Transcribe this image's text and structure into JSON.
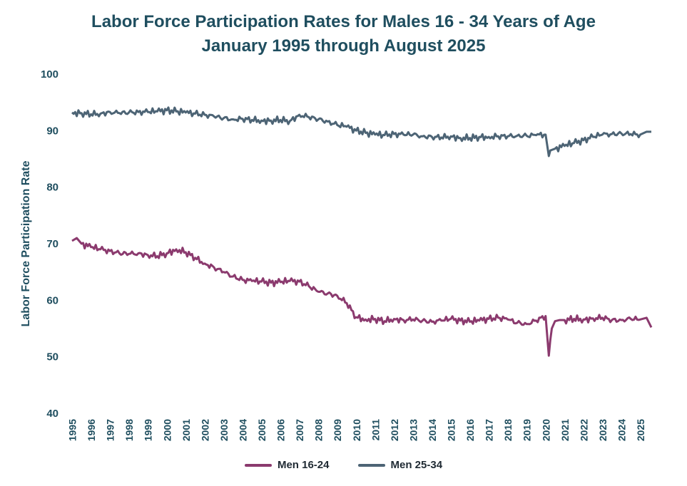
{
  "chart_data": {
    "type": "line",
    "title": "Labor Force Participation Rates for Males 16 - 34 Years of Age",
    "subtitle": "January 1995 through August 2025",
    "xlabel": "",
    "ylabel": "Labor Force Participation Rate",
    "ylim": [
      40,
      100
    ],
    "xlim": [
      1995.0,
      2025.583
    ],
    "yticks": [
      "100",
      "90",
      "80",
      "70",
      "60",
      "50",
      "40"
    ],
    "xticks": [
      "1995",
      "1996",
      "1997",
      "1998",
      "1999",
      "2000",
      "2001",
      "2002",
      "2003",
      "2004",
      "2005",
      "2006",
      "2007",
      "2008",
      "2009",
      "2010",
      "2011",
      "2012",
      "2013",
      "2014",
      "2015",
      "2016",
      "2017",
      "2018",
      "2019",
      "2020",
      "2021",
      "2022",
      "2023",
      "2024",
      "2025"
    ],
    "grid": false,
    "legend_position": "bottom",
    "series": [
      {
        "name": "Men 16-24",
        "color": "#8b3a6e",
        "x": [
          1995.0,
          1995.25,
          1995.5,
          1996.0,
          1996.5,
          1997.0,
          1997.5,
          1998.0,
          1998.5,
          1999.0,
          1999.5,
          2000.0,
          2000.5,
          2001.0,
          2001.5,
          2002.0,
          2002.5,
          2003.0,
          2003.5,
          2004.0,
          2004.5,
          2005.0,
          2005.5,
          2006.0,
          2006.5,
          2007.0,
          2007.5,
          2008.0,
          2008.5,
          2009.0,
          2009.5,
          2010.0,
          2010.5,
          2011.0,
          2011.5,
          2012.0,
          2012.5,
          2013.0,
          2013.5,
          2014.0,
          2014.5,
          2015.0,
          2015.5,
          2016.0,
          2016.5,
          2017.0,
          2017.5,
          2018.0,
          2018.5,
          2019.0,
          2019.5,
          2020.0,
          2020.17,
          2020.25,
          2020.33,
          2020.5,
          2020.75,
          2021.0,
          2021.5,
          2022.0,
          2022.5,
          2023.0,
          2023.5,
          2024.0,
          2024.5,
          2025.0,
          2025.33,
          2025.583
        ],
        "values": [
          70.5,
          71.0,
          70.0,
          69.4,
          69.0,
          68.7,
          68.3,
          68.2,
          68.3,
          68.0,
          67.8,
          68.3,
          69.0,
          68.5,
          67.5,
          66.5,
          65.8,
          65.0,
          64.2,
          63.6,
          63.4,
          63.3,
          63.1,
          63.2,
          63.4,
          63.3,
          62.5,
          61.5,
          61.2,
          60.8,
          59.5,
          57.0,
          56.6,
          56.7,
          56.3,
          56.7,
          56.5,
          56.6,
          56.4,
          56.2,
          56.4,
          56.7,
          56.4,
          56.2,
          56.4,
          56.7,
          56.9,
          56.6,
          56.0,
          55.8,
          56.4,
          57.2,
          50.2,
          53.0,
          55.0,
          56.3,
          56.5,
          56.5,
          56.7,
          56.6,
          56.8,
          56.9,
          56.5,
          56.5,
          56.7,
          56.6,
          56.9,
          55.2
        ]
      },
      {
        "name": "Men 25-34",
        "color": "#4d6475",
        "x": [
          1995.0,
          1995.5,
          1996.0,
          1996.5,
          1997.0,
          1997.5,
          1998.0,
          1998.5,
          1999.0,
          1999.5,
          2000.0,
          2000.5,
          2001.0,
          2001.5,
          2002.0,
          2002.5,
          2003.0,
          2003.5,
          2004.0,
          2004.5,
          2005.0,
          2005.5,
          2006.0,
          2006.5,
          2007.0,
          2007.5,
          2008.0,
          2008.5,
          2009.0,
          2009.5,
          2010.0,
          2010.5,
          2011.0,
          2011.5,
          2012.0,
          2012.5,
          2013.0,
          2013.5,
          2014.0,
          2014.5,
          2015.0,
          2015.5,
          2016.0,
          2016.5,
          2017.0,
          2017.5,
          2018.0,
          2018.5,
          2019.0,
          2019.5,
          2020.0,
          2020.17,
          2020.25,
          2020.5,
          2021.0,
          2021.5,
          2022.0,
          2022.5,
          2023.0,
          2023.5,
          2024.0,
          2024.5,
          2025.0,
          2025.33,
          2025.583
        ],
        "values": [
          93.2,
          93.1,
          92.9,
          93.0,
          93.3,
          93.1,
          93.2,
          93.3,
          93.3,
          93.4,
          93.6,
          93.4,
          93.2,
          93.0,
          92.8,
          92.5,
          92.2,
          92.0,
          92.1,
          91.9,
          91.8,
          91.8,
          91.9,
          91.7,
          92.8,
          92.4,
          92.0,
          91.6,
          91.0,
          90.7,
          90.0,
          89.6,
          89.3,
          89.2,
          89.4,
          89.3,
          89.3,
          89.0,
          88.9,
          88.8,
          89.0,
          88.7,
          88.7,
          88.9,
          88.9,
          89.0,
          89.0,
          89.1,
          89.1,
          89.2,
          89.3,
          85.5,
          86.5,
          86.8,
          87.3,
          87.8,
          88.3,
          88.9,
          89.3,
          89.4,
          89.5,
          89.4,
          89.3,
          89.8,
          89.8
        ]
      }
    ]
  }
}
